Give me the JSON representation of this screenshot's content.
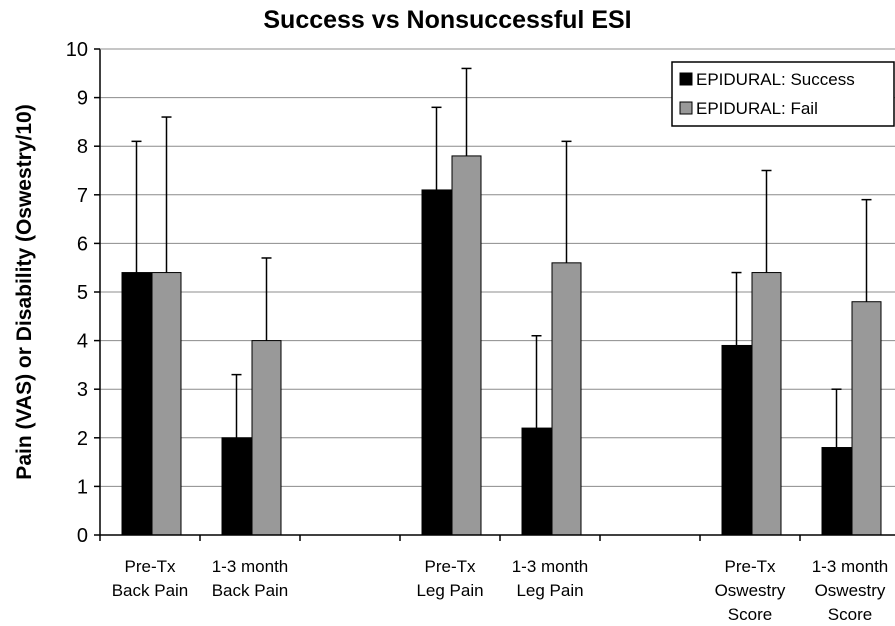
{
  "chart_data": {
    "type": "bar",
    "title": "Success vs Nonsuccessful ESI",
    "xlabel": "",
    "ylabel": "Pain (VAS) or Disability (Oswestry/10)",
    "ylim": [
      0,
      10
    ],
    "yticks": [
      "0",
      "1",
      "2",
      "3",
      "4",
      "5",
      "6",
      "7",
      "8",
      "9",
      "10"
    ],
    "grid": true,
    "legend_position": "top-right",
    "categories": [
      [
        "Pre-Tx",
        "Back Pain"
      ],
      [
        "1-3 month",
        "Back Pain"
      ],
      [
        "",
        ""
      ],
      [
        "Pre-Tx",
        "Leg Pain"
      ],
      [
        "1-3 month",
        "Leg Pain"
      ],
      [
        "",
        ""
      ],
      [
        "Pre-Tx",
        "Oswestry",
        "Score"
      ],
      [
        "1-3 month",
        "Oswestry",
        "Score"
      ]
    ],
    "series": [
      {
        "name": "EPIDURAL: Success",
        "color": "#000000",
        "values": [
          5.4,
          2.0,
          null,
          7.1,
          2.2,
          null,
          3.9,
          1.8
        ],
        "error": [
          2.7,
          1.3,
          null,
          1.7,
          1.9,
          null,
          1.5,
          1.2
        ]
      },
      {
        "name": "EPIDURAL: Fail",
        "color": "#999999",
        "values": [
          5.4,
          4.0,
          null,
          7.8,
          5.6,
          null,
          5.4,
          4.8
        ],
        "error": [
          3.2,
          1.7,
          null,
          1.8,
          2.5,
          null,
          2.1,
          2.1
        ]
      }
    ]
  }
}
